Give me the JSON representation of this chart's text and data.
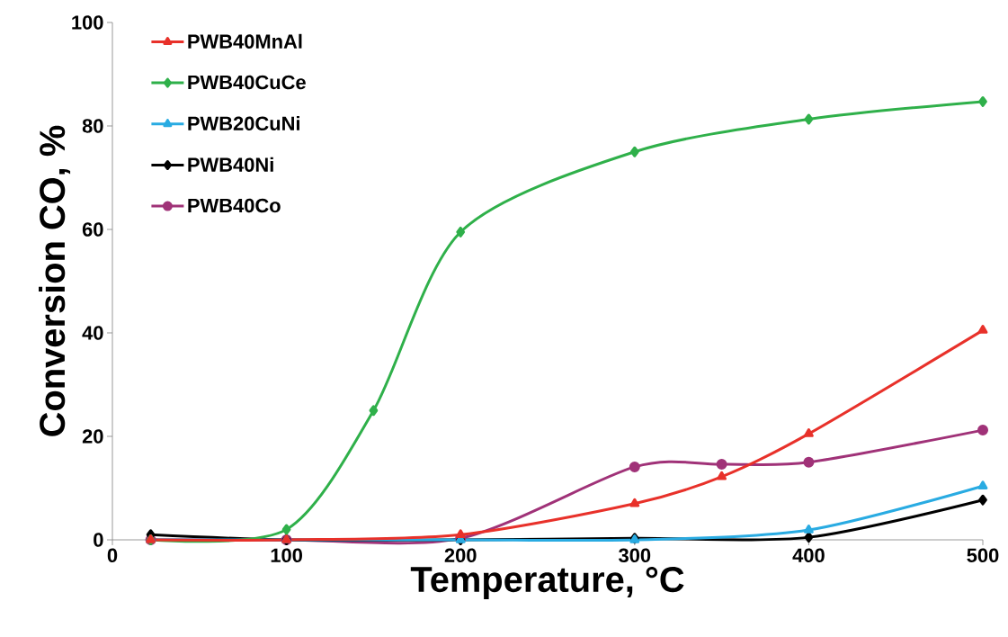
{
  "chart_data": {
    "type": "line",
    "xlabel": "Temperature, °C",
    "ylabel": "Conversion CO, %",
    "xlim": [
      0,
      500
    ],
    "xticks": [
      0,
      100,
      200,
      300,
      400,
      500
    ],
    "ylim": [
      0,
      100
    ],
    "yticks": [
      0,
      20,
      40,
      60,
      80,
      100
    ],
    "grid": false,
    "legend": "top left",
    "line_style": "solid",
    "series": [
      {
        "name": "PWB40MnAl",
        "color": "#e8312a",
        "marker": "triangle",
        "x": [
          22,
          100,
          200,
          300,
          350,
          400,
          500
        ],
        "values": [
          0,
          0,
          1,
          7,
          12.2,
          20.5,
          40.5
        ]
      },
      {
        "name": "PWB40CuCe",
        "color": "#2fb04a",
        "marker": "diamond",
        "x": [
          22,
          100,
          150,
          200,
          300,
          400,
          500
        ],
        "values": [
          0,
          2,
          25,
          59.5,
          75,
          81.3,
          84.7
        ]
      },
      {
        "name": "PWB20CuNi",
        "color": "#29abe2",
        "marker": "triangle",
        "x": [
          22,
          100,
          200,
          300,
          400,
          500
        ],
        "values": [
          0,
          0,
          0,
          0,
          1.9,
          10.4
        ]
      },
      {
        "name": "PWB40Ni",
        "color": "#000000",
        "marker": "diamond",
        "x": [
          22,
          100,
          200,
          300,
          400,
          500
        ],
        "values": [
          1,
          0,
          0,
          0.3,
          0.5,
          7.7
        ]
      },
      {
        "name": "PWB40Co",
        "color": "#a03278",
        "marker": "circle",
        "x": [
          22,
          100,
          200,
          300,
          350,
          400,
          500
        ],
        "values": [
          0,
          0,
          0.3,
          14.1,
          14.6,
          15,
          21.2
        ]
      }
    ]
  }
}
